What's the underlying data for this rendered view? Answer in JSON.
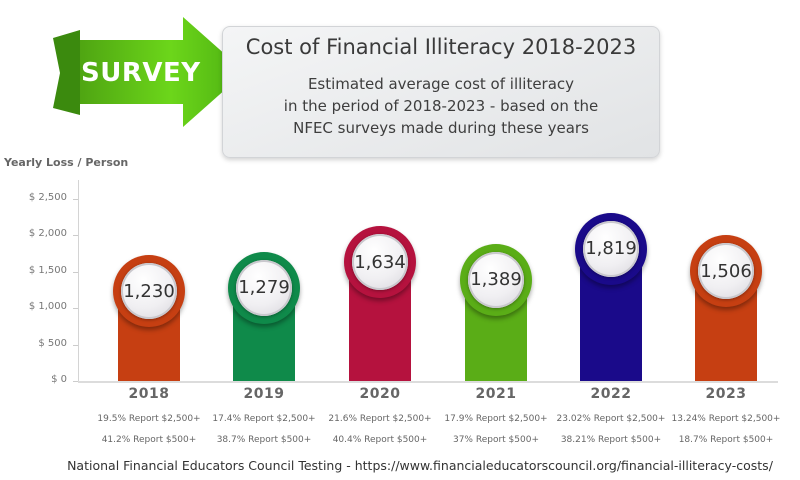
{
  "ribbon": {
    "label": "SURVEY",
    "color": "#5bbf14"
  },
  "header": {
    "title": "Cost of Financial Illiteracy 2018-2023",
    "subtitle_lines": [
      "Estimated average cost of illiteracy",
      "in the period of 2018-2023 - based on the",
      "NFEC surveys made during these years"
    ]
  },
  "footer": {
    "text": "National Financial Educators Council Testing  -  https://www.financialeducatorscouncil.org/financial-illiteracy-costs/"
  },
  "chart_data": {
    "type": "bar",
    "title": "Cost of Financial Illiteracy 2018-2023",
    "subtitle": "Estimated average cost of illiteracy in the period of 2018-2023 - based on the NFEC surveys made during these years",
    "xlabel": "",
    "ylabel": "Yearly Loss / Person",
    "ylim": [
      0,
      2500
    ],
    "yticks": [
      "$ 0",
      "$ 500",
      "$ 1,000",
      "$ 1,500",
      "$ 2,000",
      "$ 2,500"
    ],
    "ytick_values": [
      0,
      500,
      1000,
      1500,
      2000,
      2500
    ],
    "grid": false,
    "categories": [
      "2018",
      "2019",
      "2020",
      "2021",
      "2022",
      "2023"
    ],
    "values": [
      1230,
      1279,
      1634,
      1389,
      1819,
      1506
    ],
    "value_labels": [
      "1,230",
      "1,279",
      "1,634",
      "1,389",
      "1,819",
      "1,506"
    ],
    "colors": [
      "#c63f12",
      "#0f8a4a",
      "#b5123e",
      "#5aad17",
      "#1a0a8a",
      "#c63f12"
    ],
    "annotations": [
      {
        "year": "2018",
        "report_2500": "19.5% Report $2,500+",
        "report_500": "41.2% Report $500+"
      },
      {
        "year": "2019",
        "report_2500": "17.4% Report $2,500+",
        "report_500": "38.7% Report $500+"
      },
      {
        "year": "2020",
        "report_2500": "21.6% Report $2,500+",
        "report_500": "40.4% Report $500+"
      },
      {
        "year": "2021",
        "report_2500": "17.9% Report $2,500+",
        "report_500": "37% Report $500+"
      },
      {
        "year": "2022",
        "report_2500": "23.02% Report $2,500+",
        "report_500": "38.21% Report $500+"
      },
      {
        "year": "2023",
        "report_2500": "13.24% Report $2,500+",
        "report_500": "18.7% Report $500+"
      }
    ]
  }
}
